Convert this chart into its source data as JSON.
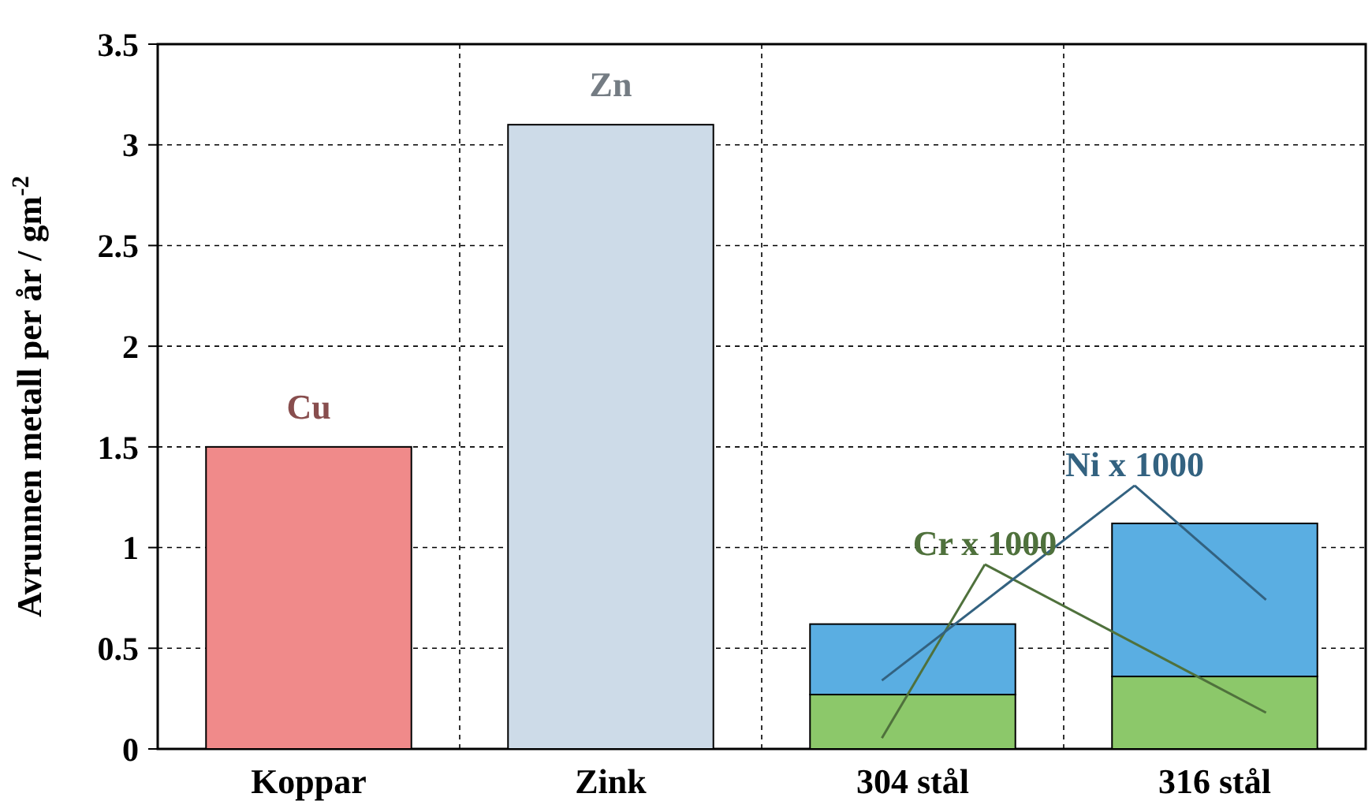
{
  "chart_data": {
    "type": "bar",
    "stacked": true,
    "ylabel": "Avrunnen metall per år / gm$^{-2}$",
    "categories": [
      "Koppar",
      "Zink",
      "304 stål",
      "316 stål"
    ],
    "series": [
      {
        "name": "Cu",
        "color": "#f08a8a",
        "values": [
          1.5,
          null,
          null,
          null
        ]
      },
      {
        "name": "Zn",
        "color": "#cddbe8",
        "values": [
          null,
          3.1,
          null,
          null
        ]
      },
      {
        "name": "Cr x 1000",
        "color": "#8cc86a",
        "values": [
          null,
          null,
          0.27,
          0.36
        ]
      },
      {
        "name": "Ni x 1000",
        "color": "#5aaee2",
        "values": [
          null,
          null,
          0.35,
          0.76
        ]
      }
    ],
    "ylim": [
      0,
      3.5
    ],
    "yticks": [
      0,
      0.5,
      1,
      1.5,
      2,
      2.5,
      3,
      3.5
    ],
    "grid": true
  }
}
